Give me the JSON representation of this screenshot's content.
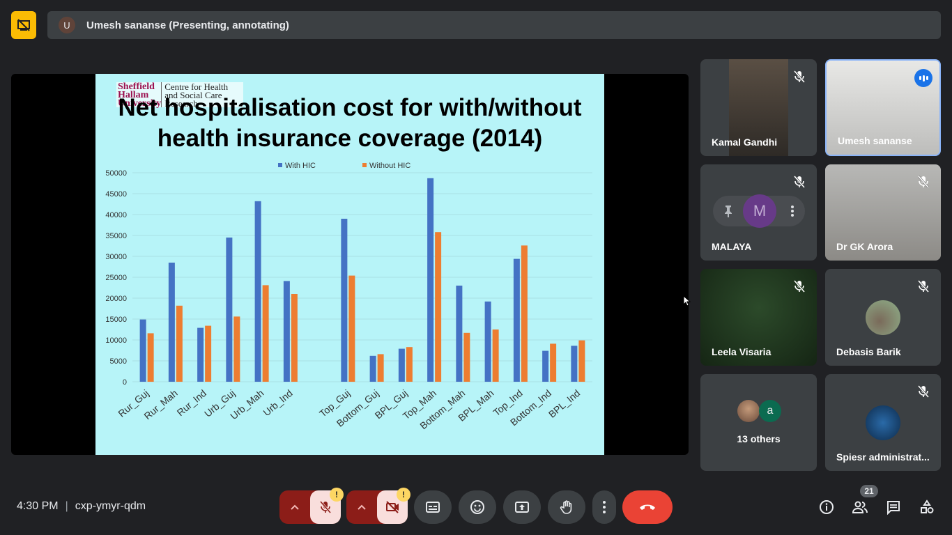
{
  "top_bar": {
    "presenter_initial": "U",
    "presenter_text": "Umesh sananse (Presenting, annotating)"
  },
  "slide": {
    "logo_line1": "Sheffield Hallam University",
    "logo_line2": "Centre for Health and Social Care Research",
    "title_line1": "Net hospitalisation cost for with/without",
    "title_line2": "health insurance coverage (2014)"
  },
  "chart_data": {
    "type": "bar",
    "categories": [
      "Rur_Guj",
      "Rur_Mah",
      "Rur_Ind",
      "Urb_Guj",
      "Urb_Mah",
      "Urb_Ind",
      "",
      "Top_Guj",
      "Bottom_Guj",
      "BPL_Guj",
      "Top_Mah",
      "Bottom_Mah",
      "BPL_Mah",
      "Top_Ind",
      "Bottom_Ind",
      "BPL_Ind"
    ],
    "series": [
      {
        "name": "With HIC",
        "color": "#4472c4",
        "values": [
          14900,
          28500,
          12900,
          34500,
          43200,
          24100,
          null,
          39000,
          6200,
          7900,
          48700,
          23000,
          19200,
          29400,
          7400,
          8600
        ]
      },
      {
        "name": "Without HIC",
        "color": "#ed7d31",
        "values": [
          11600,
          18200,
          13400,
          15600,
          23100,
          21000,
          null,
          25400,
          6600,
          8300,
          35800,
          11700,
          12500,
          32600,
          9100,
          9900
        ]
      }
    ],
    "ylim": [
      0,
      50000
    ],
    "yticks": [
      "50000",
      "45000",
      "40000",
      "35000",
      "30000",
      "25000",
      "20000",
      "15000",
      "10000",
      "5000",
      "0"
    ],
    "legend": "top-center",
    "grid": true
  },
  "participants": [
    {
      "name": "Kamal Gandhi",
      "muted": true
    },
    {
      "name": "Umesh sananse",
      "speaking": true
    },
    {
      "name": "MALAYA",
      "initial": "M",
      "muted": true
    },
    {
      "name": "Dr GK Arora",
      "muted": true
    },
    {
      "name": "Leela Visaria",
      "muted": true
    },
    {
      "name": "Debasis Barik",
      "muted": true
    },
    {
      "name": "13 others",
      "other_initial": "a"
    },
    {
      "name": "Spiesr administrat...",
      "muted": true
    }
  ],
  "bottom": {
    "time": "4:30 PM",
    "separator": "|",
    "meeting_code": "cxp-ymyr-qdm",
    "people_count": "21",
    "warn_mark": "!"
  },
  "colors": {
    "end_call": "#ea4335",
    "muted_red": "#8c1d18",
    "warn": "#fdd663",
    "accent_blue": "#1a73e8"
  }
}
